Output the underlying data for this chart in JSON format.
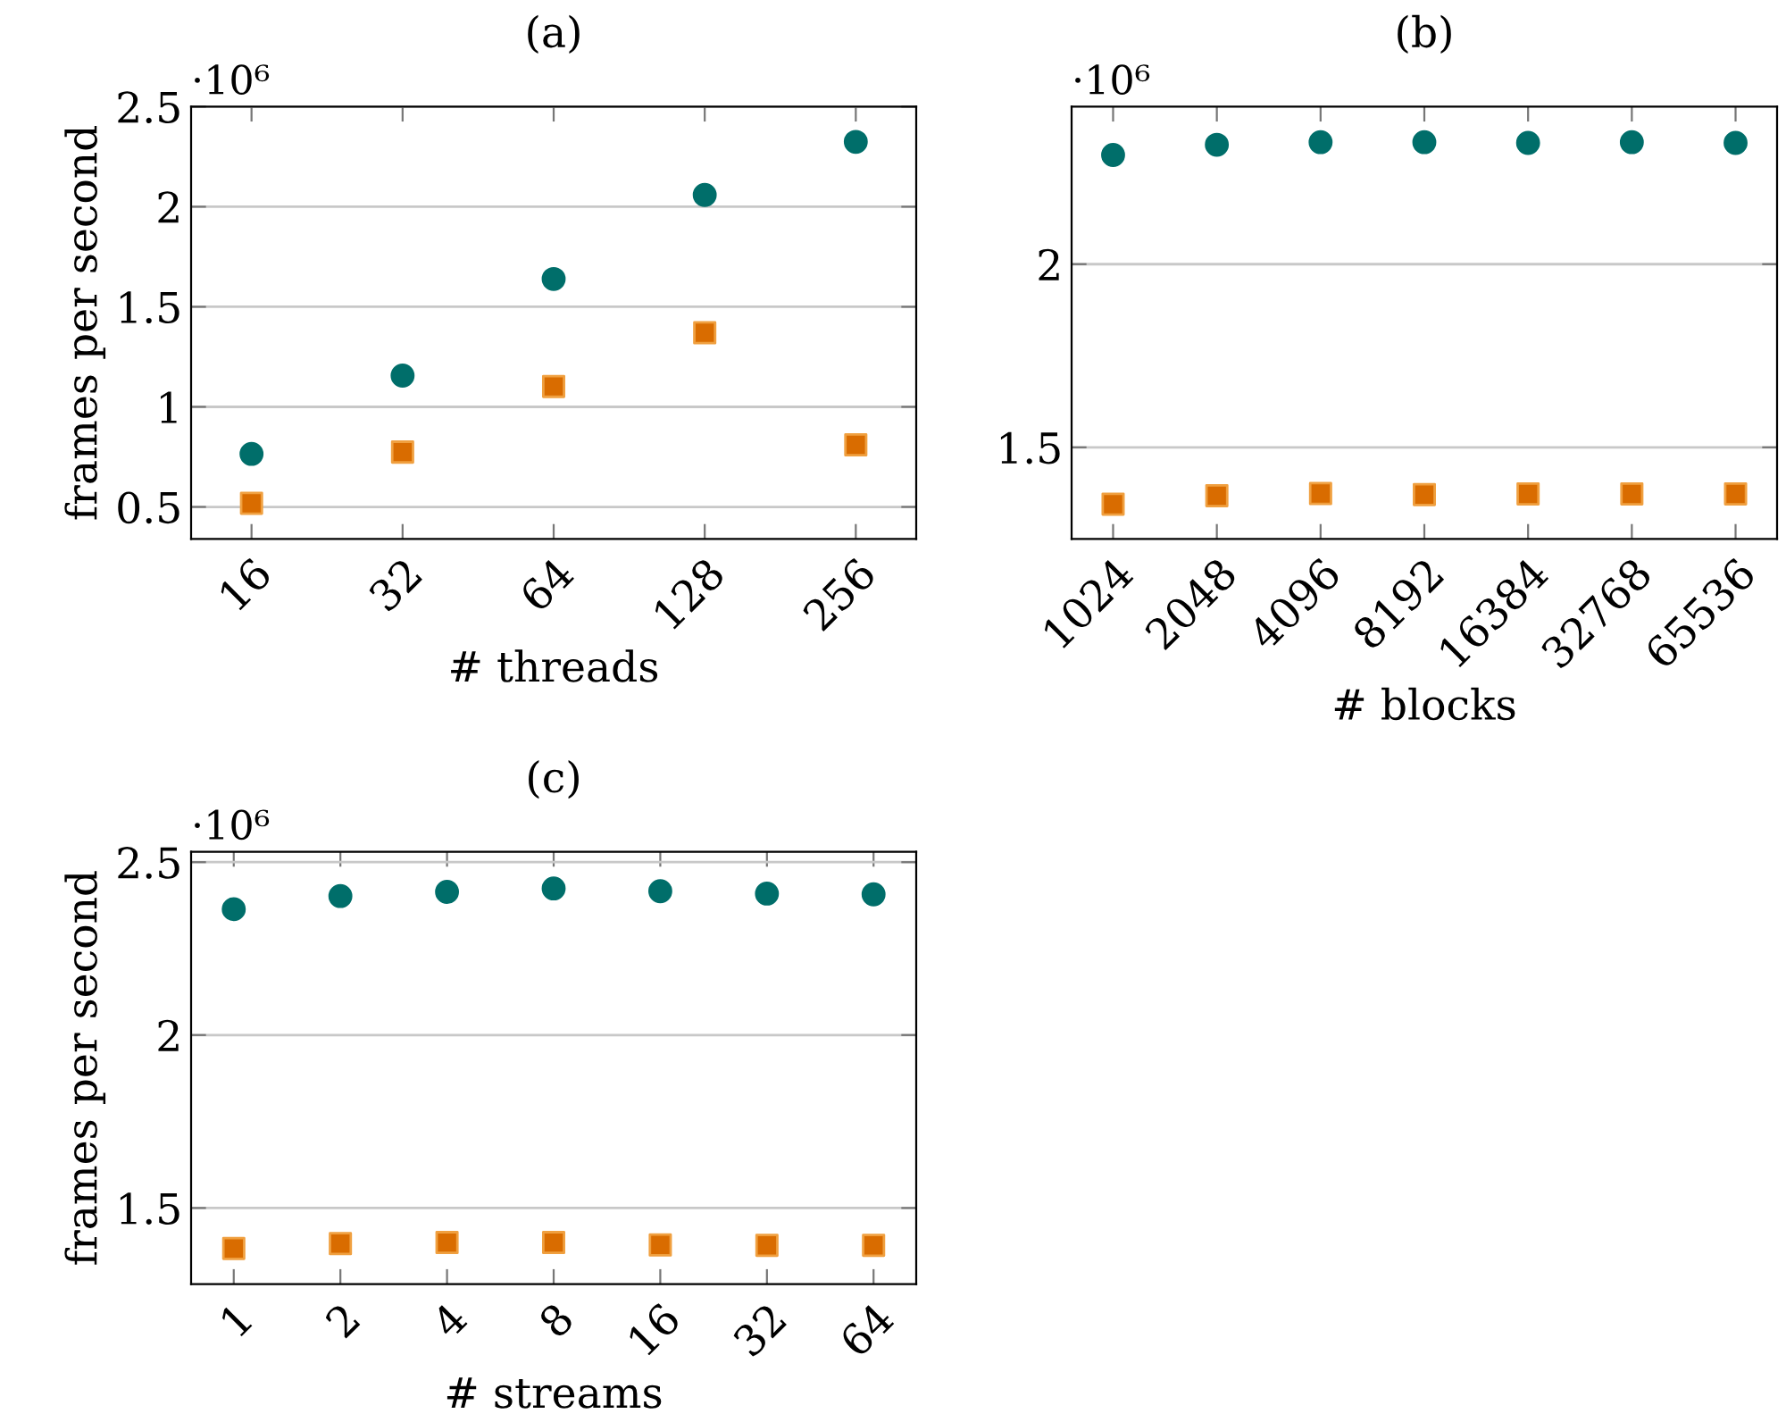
{
  "chart_data": [
    {
      "type": "scatter",
      "title": "(a)",
      "xlabel": "# threads",
      "ylabel": "frames per second",
      "annotations": [
        "·10⁶"
      ],
      "categories": [
        "16",
        "32",
        "64",
        "128",
        "256"
      ],
      "ylim": [
        0.34,
        2.5
      ],
      "yticks": [
        0.5,
        1,
        1.5,
        2,
        2.5
      ],
      "grid": "y",
      "series": [
        {
          "color": "#006e6a",
          "marker": "circle",
          "values": [
            0.765,
            1.156,
            1.639,
            2.059,
            2.324
          ]
        },
        {
          "color": "#d96c00",
          "marker": "square",
          "values": [
            0.518,
            0.774,
            1.102,
            1.37,
            0.81
          ]
        }
      ]
    },
    {
      "type": "scatter",
      "title": "(b)",
      "xlabel": "# blocks",
      "annotations": [
        "·10⁶"
      ],
      "categories": [
        "1024",
        "2048",
        "4096",
        "8192",
        "16384",
        "32768",
        "65536"
      ],
      "ylim": [
        1.25,
        2.43
      ],
      "yticks": [
        1.5,
        2
      ],
      "grid": "y",
      "series": [
        {
          "color": "#006e6a",
          "marker": "circle",
          "values": [
            2.298,
            2.326,
            2.333,
            2.333,
            2.331,
            2.333,
            2.331
          ]
        },
        {
          "color": "#d96c00",
          "marker": "square",
          "values": [
            1.345,
            1.368,
            1.374,
            1.371,
            1.373,
            1.373,
            1.373
          ]
        }
      ]
    },
    {
      "type": "scatter",
      "title": "(c)",
      "xlabel": "# streams",
      "ylabel": "frames per second",
      "annotations": [
        "·10⁶"
      ],
      "categories": [
        "1",
        "2",
        "4",
        "8",
        "16",
        "32",
        "64"
      ],
      "ylim": [
        1.28,
        2.53
      ],
      "yticks": [
        1.5,
        2,
        2.5
      ],
      "grid": "y",
      "series": [
        {
          "color": "#006e6a",
          "marker": "circle",
          "values": [
            2.364,
            2.402,
            2.414,
            2.424,
            2.416,
            2.409,
            2.407
          ]
        },
        {
          "color": "#d96c00",
          "marker": "square",
          "values": [
            1.383,
            1.397,
            1.4,
            1.4,
            1.393,
            1.392,
            1.392
          ]
        }
      ]
    }
  ]
}
